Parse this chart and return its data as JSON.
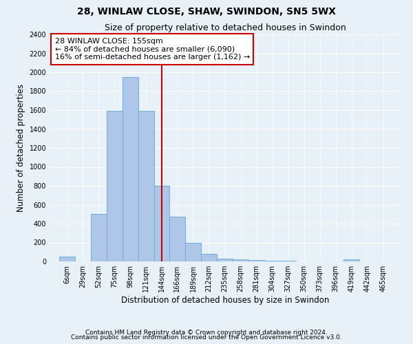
{
  "title": "28, WINLAW CLOSE, SHAW, SWINDON, SN5 5WX",
  "subtitle": "Size of property relative to detached houses in Swindon",
  "xlabel": "Distribution of detached houses by size in Swindon",
  "ylabel": "Number of detached properties",
  "footer1": "Contains HM Land Registry data © Crown copyright and database right 2024.",
  "footer2": "Contains public sector information licensed under the Open Government Licence v3.0.",
  "annotation_line1": "28 WINLAW CLOSE: 155sqm",
  "annotation_line2": "← 84% of detached houses are smaller (6,090)",
  "annotation_line3": "16% of semi-detached houses are larger (1,162) →",
  "property_size": 155,
  "bar_labels": [
    "6sqm",
    "29sqm",
    "52sqm",
    "75sqm",
    "98sqm",
    "121sqm",
    "144sqm",
    "166sqm",
    "189sqm",
    "212sqm",
    "235sqm",
    "258sqm",
    "281sqm",
    "304sqm",
    "327sqm",
    "350sqm",
    "373sqm",
    "396sqm",
    "419sqm",
    "442sqm",
    "465sqm"
  ],
  "bar_values": [
    50,
    0,
    500,
    1590,
    1950,
    1590,
    800,
    475,
    195,
    80,
    30,
    20,
    15,
    5,
    5,
    0,
    0,
    0,
    20,
    0,
    0
  ],
  "bar_edges": [
    6,
    29,
    52,
    75,
    98,
    121,
    144,
    166,
    189,
    212,
    235,
    258,
    281,
    304,
    327,
    350,
    373,
    396,
    419,
    442,
    465,
    488
  ],
  "bar_color": "#aec6e8",
  "bar_edgecolor": "#6baed6",
  "marker_color": "#cc0000",
  "ylim": [
    0,
    2400
  ],
  "yticks": [
    0,
    200,
    400,
    600,
    800,
    1000,
    1200,
    1400,
    1600,
    1800,
    2000,
    2200,
    2400
  ],
  "background_color": "#e8f0f8",
  "grid_color": "#ffffff",
  "title_fontsize": 10,
  "subtitle_fontsize": 9,
  "axis_label_fontsize": 8.5,
  "tick_fontsize": 7,
  "footer_fontsize": 6.5,
  "annotation_fontsize": 8
}
